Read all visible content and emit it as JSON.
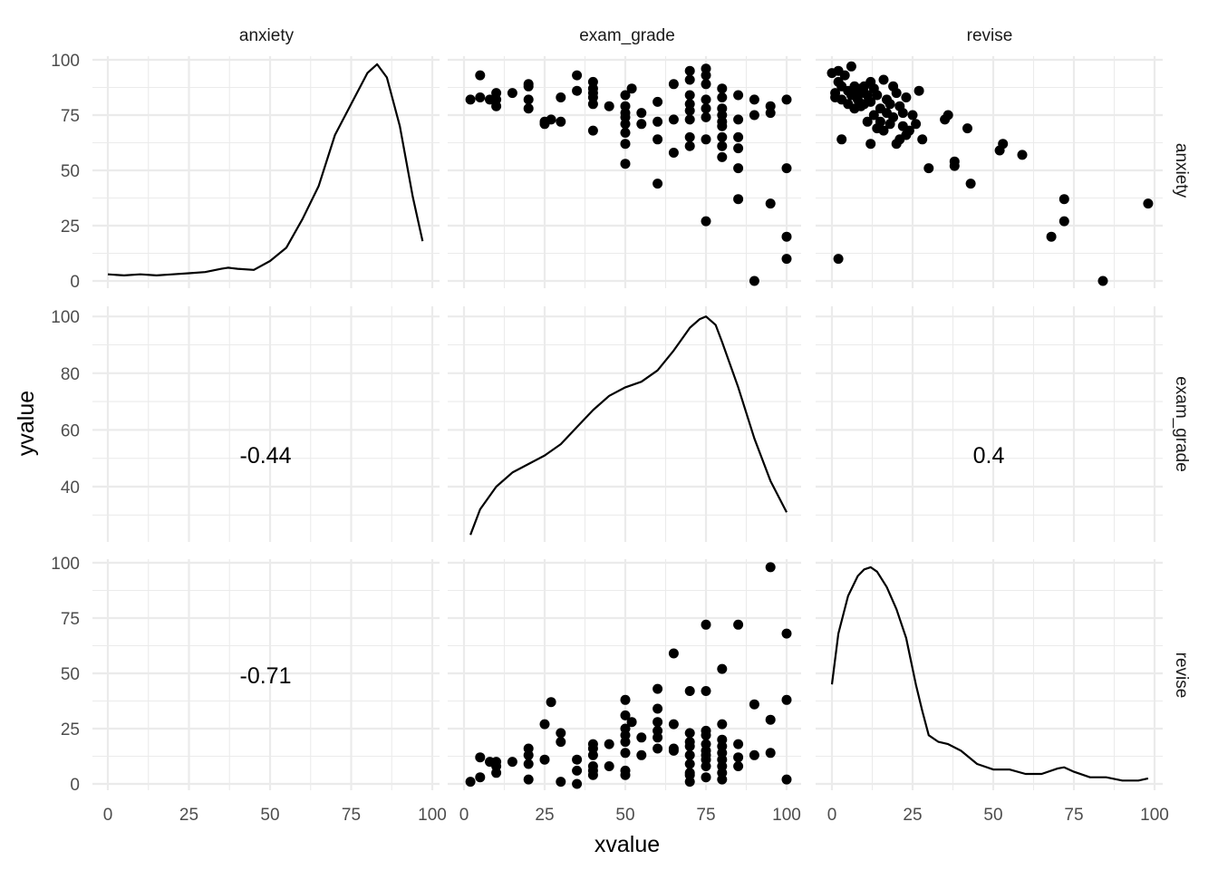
{
  "chart_data": {
    "type": "scatter",
    "xlabel": "xvalue",
    "ylabel": "yvalue",
    "variables": [
      "anxiety",
      "exam_grade",
      "revise"
    ],
    "col_strips": [
      "anxiety",
      "exam_grade",
      "revise"
    ],
    "row_strips": [
      "anxiety",
      "exam_grade",
      "revise"
    ],
    "grid": true,
    "x_ticks": [
      [
        "0",
        "25",
        "50",
        "75",
        "100"
      ],
      [
        "0",
        "25",
        "50",
        "75",
        "100"
      ],
      [
        "0",
        "25",
        "50",
        "75",
        "100"
      ]
    ],
    "y_ticks": [
      [
        "0",
        "25",
        "50",
        "75",
        "100"
      ],
      [
        "40",
        "60",
        "80",
        "100"
      ],
      [
        "0",
        "25",
        "50",
        "75",
        "100"
      ]
    ],
    "correlations": [
      {
        "row": 1,
        "col": 0,
        "label": "-0.44"
      },
      {
        "row": 1,
        "col": 2,
        "label": "0.4"
      },
      {
        "row": 2,
        "col": 0,
        "label": "-0.71"
      }
    ],
    "density_anxiety": {
      "x": [
        0,
        5,
        10,
        15,
        20,
        25,
        30,
        35,
        37,
        40,
        45,
        50,
        55,
        60,
        65,
        70,
        75,
        80,
        83,
        86,
        90,
        94,
        97
      ],
      "y": [
        3,
        2.5,
        3,
        2.5,
        3,
        3.5,
        4,
        5.5,
        6,
        5.5,
        5,
        9,
        15,
        28,
        43,
        66,
        80,
        94,
        98,
        92,
        70,
        38,
        18
      ]
    },
    "density_exam_grade": {
      "x": [
        2,
        5,
        10,
        15,
        20,
        25,
        30,
        35,
        40,
        45,
        50,
        55,
        60,
        65,
        70,
        73,
        75,
        78,
        80,
        85,
        90,
        95,
        100
      ],
      "y": [
        23,
        32,
        40,
        45,
        48,
        51,
        55,
        61,
        67,
        72,
        75,
        77,
        81,
        88,
        96,
        99,
        100,
        97,
        91,
        75,
        57,
        42,
        31
      ]
    },
    "density_revise": {
      "x": [
        0,
        2,
        5,
        8,
        10,
        12,
        14,
        17,
        20,
        23,
        26,
        28,
        30,
        33,
        36,
        40,
        45,
        50,
        55,
        60,
        65,
        70,
        72,
        75,
        80,
        85,
        90,
        95,
        98
      ],
      "y": [
        45,
        68,
        85,
        94,
        97,
        98,
        96,
        89,
        79,
        66,
        45,
        33,
        22,
        19,
        18,
        15,
        9,
        6.5,
        6.5,
        4.5,
        4.5,
        7,
        7.5,
        5.5,
        3,
        3,
        1.5,
        1.5,
        2.5
      ]
    },
    "scatter_exam_vs_anxiety": {
      "x": [
        2,
        5,
        5,
        8,
        10,
        10,
        10,
        15,
        20,
        20,
        20,
        20,
        25,
        25,
        27,
        30,
        30,
        35,
        35,
        40,
        40,
        40,
        40,
        40,
        40,
        45,
        50,
        50,
        50,
        50,
        50,
        50,
        50,
        50,
        52,
        55,
        55,
        60,
        60,
        60,
        60,
        65,
        65,
        65,
        70,
        70,
        70,
        70,
        70,
        70,
        70,
        70,
        75,
        75,
        75,
        75,
        75,
        75,
        75,
        75,
        80,
        80,
        80,
        80,
        80,
        80,
        80,
        80,
        80,
        85,
        85,
        85,
        85,
        85,
        85,
        90,
        90,
        90,
        95,
        95,
        95,
        100,
        100,
        100,
        100
      ],
      "y": [
        82,
        83,
        93,
        82,
        79,
        82,
        85,
        85,
        78,
        82,
        88,
        89,
        71,
        72,
        73,
        72,
        83,
        86,
        93,
        68,
        80,
        83,
        85,
        87,
        90,
        79,
        53,
        62,
        67,
        71,
        74,
        76,
        79,
        84,
        87,
        71,
        76,
        44,
        64,
        72,
        81,
        58,
        73,
        89,
        61,
        65,
        73,
        77,
        80,
        84,
        91,
        95,
        27,
        64,
        74,
        78,
        89,
        93,
        96,
        82,
        56,
        61,
        65,
        70,
        72,
        75,
        78,
        83,
        87,
        37,
        51,
        60,
        65,
        73,
        84,
        0,
        75,
        82,
        35,
        76,
        79,
        10,
        20,
        51,
        82
      ]
    },
    "scatter_revise_vs_anxiety": {
      "x": [
        0,
        1,
        2,
        2,
        3,
        3,
        4,
        5,
        5,
        6,
        6,
        7,
        7,
        8,
        8,
        9,
        9,
        10,
        10,
        10,
        11,
        11,
        12,
        12,
        12,
        13,
        13,
        14,
        14,
        15,
        15,
        16,
        16,
        17,
        17,
        18,
        18,
        19,
        19,
        20,
        20,
        21,
        21,
        22,
        22,
        23,
        23,
        24,
        25,
        26,
        27,
        28,
        30,
        35,
        36,
        38,
        38,
        42,
        43,
        52,
        53,
        59,
        68,
        72,
        72,
        84,
        98,
        2,
        1,
        3
      ],
      "y": [
        94,
        85,
        95,
        90,
        82,
        88,
        93,
        86,
        80,
        97,
        84,
        88,
        78,
        85,
        82,
        87,
        79,
        80,
        88,
        85,
        72,
        84,
        90,
        81,
        62,
        87,
        75,
        69,
        84,
        78,
        72,
        91,
        68,
        82,
        76,
        71,
        80,
        88,
        74,
        62,
        85,
        64,
        79,
        70,
        76,
        66,
        83,
        68,
        75,
        71,
        86,
        64,
        51,
        73,
        75,
        52,
        54,
        69,
        44,
        59,
        62,
        57,
        20,
        27,
        37,
        0,
        35,
        10,
        83,
        64
      ]
    },
    "scatter_exam_vs_revise": {
      "x": [
        2,
        5,
        5,
        8,
        10,
        10,
        10,
        15,
        20,
        20,
        20,
        20,
        25,
        25,
        27,
        30,
        30,
        30,
        35,
        35,
        35,
        40,
        40,
        40,
        40,
        40,
        40,
        45,
        45,
        50,
        50,
        50,
        50,
        50,
        50,
        50,
        50,
        52,
        55,
        55,
        60,
        60,
        60,
        60,
        60,
        60,
        65,
        65,
        65,
        65,
        70,
        70,
        70,
        70,
        70,
        70,
        70,
        70,
        70,
        75,
        75,
        75,
        75,
        75,
        75,
        75,
        75,
        75,
        75,
        80,
        80,
        80,
        80,
        80,
        80,
        80,
        80,
        80,
        85,
        85,
        85,
        85,
        90,
        90,
        95,
        95,
        95,
        100,
        100,
        100
      ],
      "y": [
        1,
        12,
        3,
        10,
        5,
        10,
        8,
        10,
        2,
        13,
        16,
        9,
        27,
        11,
        37,
        1,
        19,
        23,
        0,
        6,
        11,
        13,
        18,
        4,
        6,
        8,
        16,
        8,
        18,
        4,
        6,
        14,
        19,
        22,
        25,
        31,
        38,
        28,
        21,
        13,
        16,
        21,
        24,
        28,
        34,
        43,
        27,
        16,
        15,
        59,
        1,
        5,
        9,
        13,
        17,
        23,
        42,
        4,
        19,
        3,
        8,
        13,
        15,
        18,
        22,
        24,
        42,
        72,
        11,
        2,
        5,
        8,
        11,
        14,
        17,
        20,
        27,
        52,
        8,
        12,
        18,
        72,
        13,
        36,
        14,
        29,
        98,
        2,
        38,
        68
      ]
    }
  }
}
